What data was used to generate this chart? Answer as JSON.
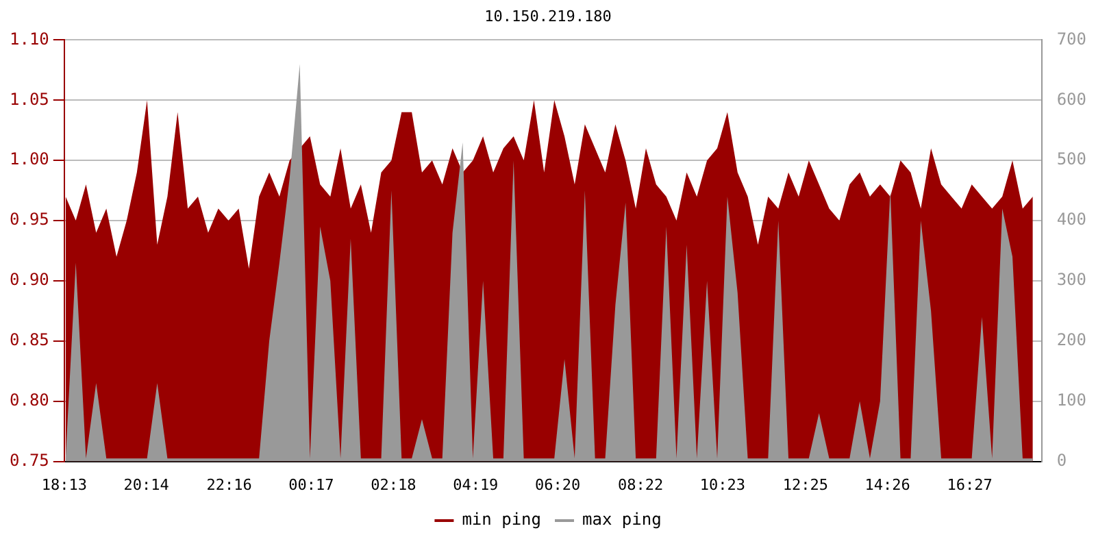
{
  "chart_data": {
    "type": "area",
    "title": "10.150.219.180",
    "x": [
      "--01-01T18:15",
      "--01-01T18:30",
      "--01-01T18:45",
      "--01-01T19:00",
      "--01-01T19:15",
      "--01-01T19:30",
      "--01-01T19:45",
      "--01-01T20:00",
      "--01-01T20:15",
      "--01-01T20:30",
      "--01-01T20:45",
      "--01-01T21:00",
      "--01-01T21:15",
      "--01-01T21:30",
      "--01-01T21:45",
      "--01-01T22:00",
      "--01-01T22:15",
      "--01-01T22:30",
      "--01-01T22:45",
      "--01-01T23:00",
      "--01-01T23:15",
      "--01-01T23:30",
      "--01-01T23:45",
      "--01-02T00:00",
      "--01-02T00:15",
      "--01-02T00:30",
      "--01-02T00:45",
      "--01-02T01:00",
      "--01-02T01:15",
      "--01-02T01:30",
      "--01-02T01:45",
      "--01-02T02:00",
      "--01-02T02:15",
      "--01-02T02:30",
      "--01-02T02:45",
      "--01-02T03:00",
      "--01-02T03:15",
      "--01-02T03:30",
      "--01-02T03:45",
      "--01-02T04:00",
      "--01-02T04:15",
      "--01-02T04:30",
      "--01-02T04:45",
      "--01-02T05:00",
      "--01-02T05:15",
      "--01-02T05:30",
      "--01-02T05:45",
      "--01-02T06:00",
      "--01-02T06:15",
      "--01-02T06:30",
      "--01-02T06:45",
      "--01-02T07:00",
      "--01-02T07:15",
      "--01-02T07:30",
      "--01-02T07:45",
      "--01-02T08:00",
      "--01-02T08:15",
      "--01-02T08:30",
      "--01-02T08:45",
      "--01-02T09:00",
      "--01-02T09:15",
      "--01-02T09:30",
      "--01-02T09:45",
      "--01-02T10:00",
      "--01-02T10:15",
      "--01-02T10:30",
      "--01-02T10:45",
      "--01-02T11:00",
      "--01-02T11:15",
      "--01-02T11:30",
      "--01-02T11:45",
      "--01-02T12:00",
      "--01-02T12:15",
      "--01-02T12:30",
      "--01-02T12:45",
      "--01-02T13:00",
      "--01-02T13:15",
      "--01-02T13:30",
      "--01-02T13:45",
      "--01-02T14:00",
      "--01-02T14:15",
      "--01-02T14:30",
      "--01-02T14:45",
      "--01-02T15:00",
      "--01-02T15:15",
      "--01-02T15:30",
      "--01-02T15:45",
      "--01-02T16:00",
      "--01-02T16:15",
      "--01-02T16:30",
      "--01-02T16:45",
      "--01-02T17:00",
      "--01-02T17:15",
      "--01-02T17:30",
      "--01-02T17:45",
      "--01-02T18:00"
    ],
    "series": [
      {
        "name": "min ping",
        "color": "#990000",
        "values": [
          0.97,
          0.95,
          0.98,
          0.94,
          0.96,
          0.92,
          0.95,
          0.99,
          1.05,
          0.93,
          0.97,
          1.04,
          0.96,
          0.97,
          0.94,
          0.96,
          0.95,
          0.96,
          0.91,
          0.97,
          0.99,
          0.97,
          1.0,
          null,
          1.02,
          0.98,
          0.97,
          1.01,
          0.96,
          0.98,
          0.94,
          0.99,
          1.0,
          1.04,
          1.04,
          0.99,
          1.0,
          0.98,
          1.01,
          0.99,
          1.0,
          1.02,
          0.99,
          1.01,
          1.02,
          1.0,
          1.05,
          0.99,
          1.05,
          1.02,
          0.98,
          1.03,
          1.01,
          0.99,
          1.03,
          1.0,
          0.96,
          1.01,
          0.98,
          0.97,
          0.95,
          0.99,
          0.97,
          1.0,
          1.01,
          1.04,
          0.99,
          0.97,
          0.93,
          0.97,
          0.96,
          0.99,
          0.97,
          1.0,
          0.98,
          0.96,
          0.95,
          0.98,
          0.99,
          0.97,
          0.98,
          0.97,
          1.0,
          0.99,
          0.96,
          1.01,
          0.98,
          0.97,
          0.96,
          0.98,
          0.97,
          0.96,
          0.97,
          1.0,
          0.96,
          0.97
        ]
      },
      {
        "name": "max ping",
        "color": "#999999",
        "axis": "y2",
        "values": [
          5,
          330,
          5,
          130,
          5,
          5,
          5,
          5,
          5,
          130,
          5,
          5,
          5,
          5,
          5,
          5,
          5,
          5,
          5,
          5,
          200,
          330,
          470,
          660,
          5,
          390,
          300,
          5,
          370,
          5,
          5,
          5,
          450,
          5,
          5,
          70,
          5,
          5,
          380,
          530,
          5,
          300,
          5,
          5,
          500,
          5,
          5,
          5,
          5,
          170,
          5,
          450,
          5,
          5,
          260,
          430,
          5,
          5,
          5,
          390,
          5,
          360,
          5,
          300,
          5,
          440,
          280,
          5,
          5,
          5,
          400,
          5,
          5,
          5,
          80,
          5,
          5,
          5,
          100,
          5,
          100,
          450,
          5,
          5,
          400,
          250,
          5,
          5,
          5,
          5,
          240,
          5,
          420,
          340,
          5,
          5
        ]
      }
    ],
    "xlim": [
      "--01-01T18:13",
      "--01-02T18:13"
    ],
    "xticks": [
      {
        "value": "--01-01T18:13",
        "label": "18:13"
      },
      {
        "value": "--01-01T20:14",
        "label": "20:14"
      },
      {
        "value": "--01-01T22:16",
        "label": "22:16"
      },
      {
        "value": "--01-02T00:17",
        "label": "00:17"
      },
      {
        "value": "--01-02T02:18",
        "label": "02:18"
      },
      {
        "value": "--01-02T04:19",
        "label": "04:19"
      },
      {
        "value": "--01-02T06:20",
        "label": "06:20"
      },
      {
        "value": "--01-02T08:22",
        "label": "08:22"
      },
      {
        "value": "--01-02T10:23",
        "label": "10:23"
      },
      {
        "value": "--01-02T12:25",
        "label": "12:25"
      },
      {
        "value": "--01-02T14:26",
        "label": "14:26"
      },
      {
        "value": "--01-02T16:27",
        "label": "16:27"
      }
    ],
    "ylim": [
      0.75,
      1.1
    ],
    "yticks": [
      {
        "value": 0.75,
        "label": "0.75"
      },
      {
        "value": 0.8,
        "label": "0.80"
      },
      {
        "value": 0.85,
        "label": "0.85"
      },
      {
        "value": 0.9,
        "label": "0.90"
      },
      {
        "value": 0.95,
        "label": "0.95"
      },
      {
        "value": 1.0,
        "label": "1.00"
      },
      {
        "value": 1.05,
        "label": "1.05"
      },
      {
        "value": 1.1,
        "label": "1.10"
      }
    ],
    "y2lim": [
      0,
      700
    ],
    "y2ticks": [
      0,
      100,
      200,
      300,
      400,
      500,
      600,
      700
    ],
    "grid": "y",
    "legend": "bottom"
  }
}
